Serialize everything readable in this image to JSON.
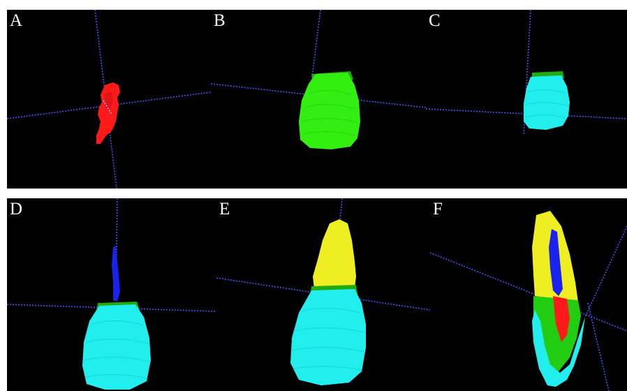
{
  "panels": [
    {
      "id": "A",
      "label": "A",
      "colors": [
        "#ff1a1a"
      ]
    },
    {
      "id": "B",
      "label": "B",
      "colors": [
        "#33ee11",
        "#22aa11"
      ]
    },
    {
      "id": "C",
      "label": "C",
      "colors": [
        "#22eeee",
        "#22aa11"
      ]
    },
    {
      "id": "D",
      "label": "D",
      "colors": [
        "#22eeee",
        "#22aa11",
        "#1a22ee"
      ]
    },
    {
      "id": "E",
      "label": "E",
      "colors": [
        "#22eeee",
        "#22aa11",
        "#eeee22"
      ]
    },
    {
      "id": "F",
      "label": "F",
      "colors": [
        "#eeee22",
        "#1a22ee",
        "#ff1a1a",
        "#22cc11",
        "#22eeee"
      ]
    }
  ],
  "axis_color": "#4455ff",
  "background_color": "#000000"
}
